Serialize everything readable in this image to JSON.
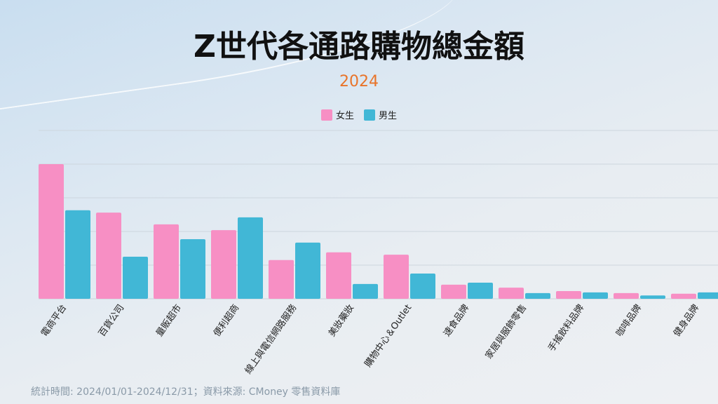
{
  "chart_data": {
    "type": "bar",
    "title": "Z世代各通路購物總金額",
    "subtitle": "2024",
    "categories": [
      "電商平台",
      "百貨公司",
      "量販超市",
      "便利超商",
      "線上與電信網路服務",
      "美妝藥妝",
      "購物中心＆Outlet",
      "速食品牌",
      "家居與服飾零售",
      "手搖飲料品牌",
      "咖啡品牌",
      "健身品牌"
    ],
    "series": [
      {
        "name": "女生",
        "color": "#f78fc4",
        "values": [
          4.0,
          2.56,
          2.21,
          2.04,
          1.15,
          1.38,
          1.31,
          0.42,
          0.33,
          0.23,
          0.17,
          0.15
        ]
      },
      {
        "name": "男生",
        "color": "#41b7d6",
        "values": [
          2.63,
          1.25,
          1.77,
          2.42,
          1.67,
          0.44,
          0.75,
          0.48,
          0.17,
          0.19,
          0.1,
          0.19
        ]
      }
    ],
    "ylim": [
      0,
      5
    ],
    "grid": true,
    "legend": "top-center",
    "xlabel": "",
    "ylabel": ""
  },
  "footer": "統計時間:  2024/01/01-2024/12/31；資料來源: CMoney 零售資料庫"
}
